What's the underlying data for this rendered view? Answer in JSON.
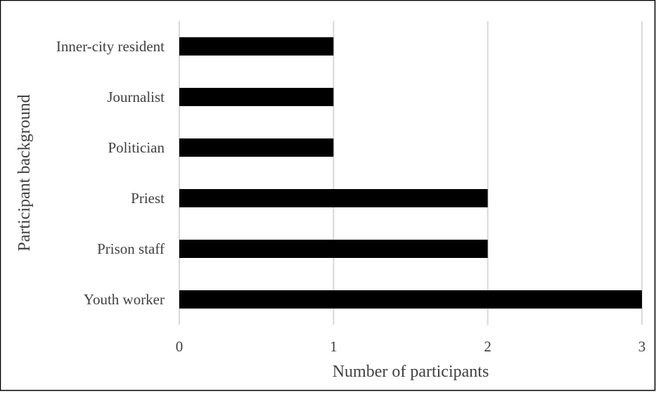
{
  "chart_data": {
    "type": "bar",
    "orientation": "horizontal",
    "title": "",
    "xlabel": "Number of participants",
    "ylabel": "Participant background",
    "categories": [
      "Inner-city resident",
      "Journalist",
      "Politician",
      "Priest",
      "Prison staff",
      "Youth worker"
    ],
    "values": [
      1,
      1,
      1,
      2,
      2,
      3
    ],
    "xlim": [
      0,
      3
    ],
    "xticks": [
      "0",
      "1",
      "2",
      "3"
    ],
    "grid": "vertical",
    "legend": "none",
    "bar_color": "#000000",
    "grid_color": "#d9d9d9"
  }
}
